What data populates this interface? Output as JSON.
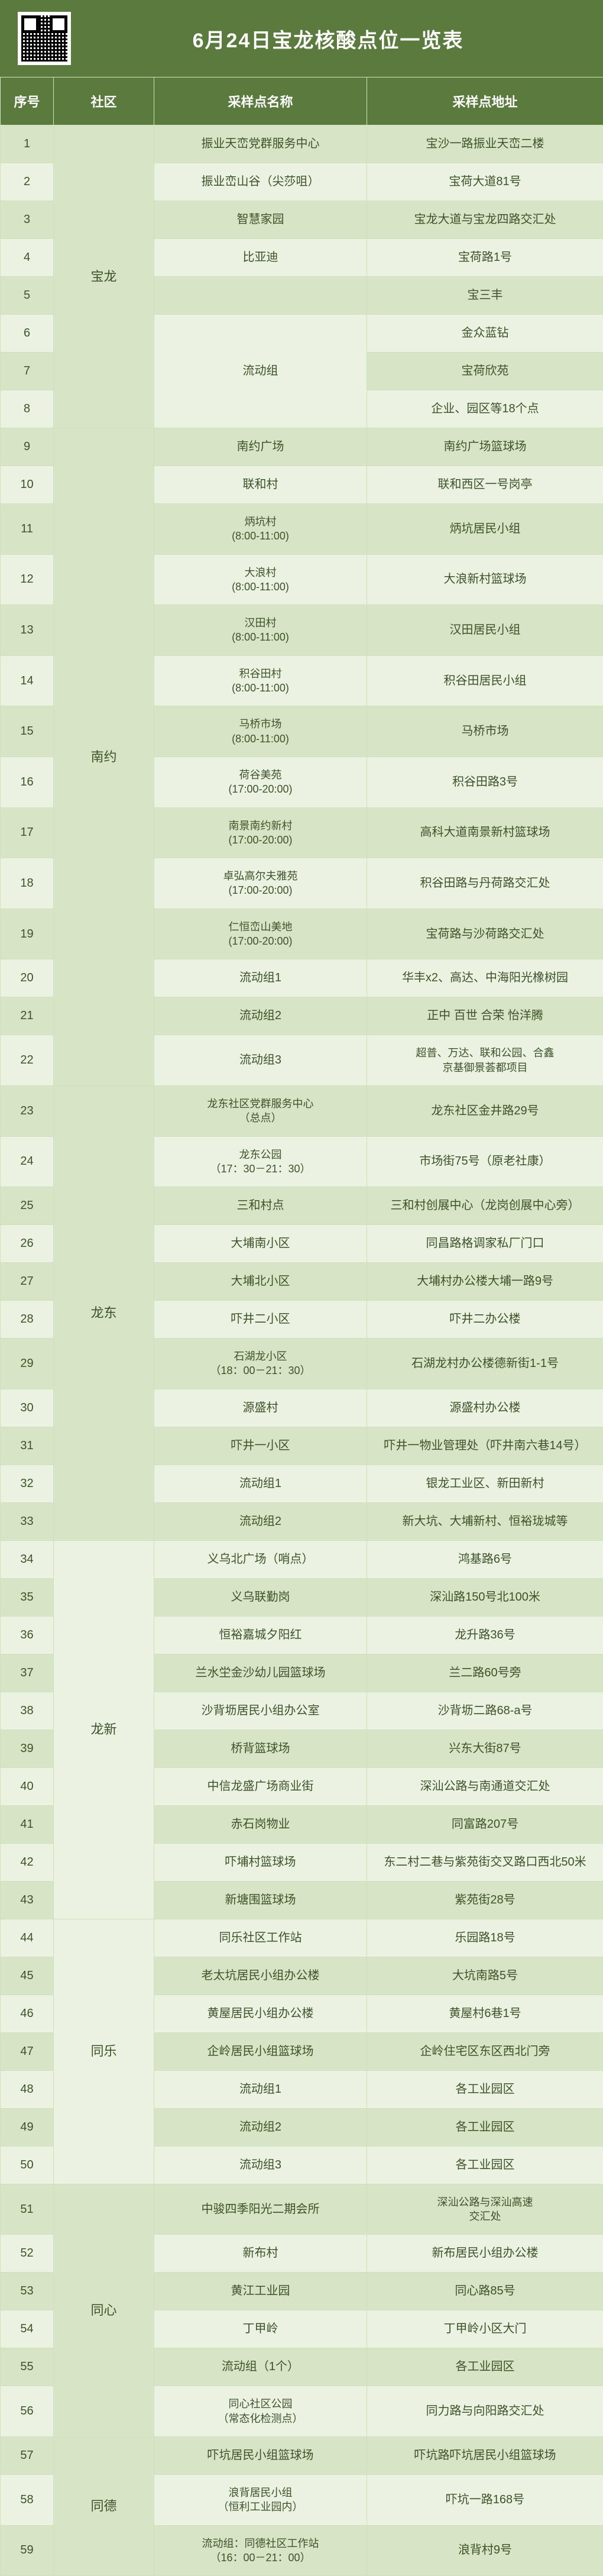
{
  "title": "6月24日宝龙核酸点位一览表",
  "columns": {
    "idx": "序号",
    "community": "社区",
    "name": "采样点名称",
    "address": "采样点地址"
  },
  "colors": {
    "header_bg": "#5a7a3e",
    "header_text": "#ffffff",
    "row_odd_bg": "#d7e5c6",
    "row_even_bg": "#ebf2e2",
    "cell_text": "#3d5228",
    "border": "#cfe0bd"
  },
  "communities": [
    {
      "name": "宝龙",
      "start": 1,
      "span": 8
    },
    {
      "name": "南约",
      "start": 9,
      "span": 14
    },
    {
      "name": "龙东",
      "start": 23,
      "span": 11
    },
    {
      "name": "龙新",
      "start": 34,
      "span": 10
    },
    {
      "name": "同乐",
      "start": 44,
      "span": 7
    },
    {
      "name": "同心",
      "start": 51,
      "span": 6
    },
    {
      "name": "同德",
      "start": 57,
      "span": 3
    }
  ],
  "merged_names": [
    {
      "start": 6,
      "span": 3,
      "name": "流动组"
    }
  ],
  "rows": [
    {
      "idx": 1,
      "name": "振业天峦党群服务中心",
      "address": "宝沙一路振业天峦二楼"
    },
    {
      "idx": 2,
      "name": "振业峦山谷（尖莎咀）",
      "address": "宝荷大道81号"
    },
    {
      "idx": 3,
      "name": "智慧家园",
      "address": "宝龙大道与宝龙四路交汇处"
    },
    {
      "idx": 4,
      "name": "比亚迪",
      "address": "宝荷路1号"
    },
    {
      "idx": 5,
      "name": "",
      "address": "宝三丰"
    },
    {
      "idx": 6,
      "name": "",
      "address": "金众蓝钻"
    },
    {
      "idx": 7,
      "name": "",
      "address": "宝荷欣苑"
    },
    {
      "idx": 8,
      "name": "",
      "address": "企业、园区等18个点"
    },
    {
      "idx": 9,
      "name": "南约广场",
      "address": "南约广场篮球场"
    },
    {
      "idx": 10,
      "name": "联和村",
      "address": "联和西区一号岗亭"
    },
    {
      "idx": 11,
      "name": "炳坑村\n(8:00-11:00)",
      "address": "炳坑居民小组"
    },
    {
      "idx": 12,
      "name": "大浪村\n(8:00-11:00)",
      "address": "大浪新村篮球场"
    },
    {
      "idx": 13,
      "name": "汉田村\n(8:00-11:00)",
      "address": "汉田居民小组"
    },
    {
      "idx": 14,
      "name": "积谷田村\n(8:00-11:00)",
      "address": "积谷田居民小组"
    },
    {
      "idx": 15,
      "name": "马桥市场\n(8:00-11:00)",
      "address": "马桥市场"
    },
    {
      "idx": 16,
      "name": "荷谷美苑\n(17:00-20:00)",
      "address": "积谷田路3号"
    },
    {
      "idx": 17,
      "name": "南景南约新村\n(17:00-20:00)",
      "address": "高科大道南景新村篮球场"
    },
    {
      "idx": 18,
      "name": "卓弘高尔夫雅苑\n(17:00-20:00)",
      "address": "积谷田路与丹荷路交汇处"
    },
    {
      "idx": 19,
      "name": "仁恒峦山美地\n(17:00-20:00)",
      "address": "宝荷路与沙荷路交汇处"
    },
    {
      "idx": 20,
      "name": "流动组1",
      "address": "华丰x2、高达、中海阳光橡树园"
    },
    {
      "idx": 21,
      "name": "流动组2",
      "address": "正中 百世 合荣 怡洋腾"
    },
    {
      "idx": 22,
      "name": "流动组3",
      "address": "超普、万达、联和公园、合鑫\n京基御景荟都项目"
    },
    {
      "idx": 23,
      "name": "龙东社区党群服务中心\n（总点）",
      "address": "龙东社区金井路29号"
    },
    {
      "idx": 24,
      "name": "龙东公园\n（17：30－21：30）",
      "address": "市场街75号（原老社康）"
    },
    {
      "idx": 25,
      "name": "三和村点",
      "address": "三和村创展中心（龙岗创展中心旁）"
    },
    {
      "idx": 26,
      "name": "大埔南小区",
      "address": "同昌路格调家私厂门口"
    },
    {
      "idx": 27,
      "name": "大埔北小区",
      "address": "大埔村办公楼大埔一路9号"
    },
    {
      "idx": 28,
      "name": "吓井二小区",
      "address": "吓井二办公楼"
    },
    {
      "idx": 29,
      "name": "石湖龙小区\n（18：00－21：30）",
      "address": "石湖龙村办公楼德新街1-1号"
    },
    {
      "idx": 30,
      "name": "源盛村",
      "address": "源盛村办公楼"
    },
    {
      "idx": 31,
      "name": "吓井一小区",
      "address": "吓井一物业管理处（吓井南六巷14号）"
    },
    {
      "idx": 32,
      "name": "流动组1",
      "address": "银龙工业区、新田新村"
    },
    {
      "idx": 33,
      "name": "流动组2",
      "address": "新大坑、大埔新村、恒裕珑城等"
    },
    {
      "idx": 34,
      "name": "义乌北广场（哨点）",
      "address": "鸿基路6号"
    },
    {
      "idx": 35,
      "name": "义乌联勤岗",
      "address": "深汕路150号北100米"
    },
    {
      "idx": 36,
      "name": "恒裕嘉城夕阳红",
      "address": "龙升路36号"
    },
    {
      "idx": 37,
      "name": "兰水坣金沙幼儿园篮球场",
      "address": "兰二路60号旁"
    },
    {
      "idx": 38,
      "name": "沙背坜居民小组办公室",
      "address": "沙背坜二路68-a号"
    },
    {
      "idx": 39,
      "name": "桥背篮球场",
      "address": "兴东大街87号"
    },
    {
      "idx": 40,
      "name": "中信龙盛广场商业街",
      "address": "深汕公路与南通道交汇处"
    },
    {
      "idx": 41,
      "name": "赤石岗物业",
      "address": "同富路207号"
    },
    {
      "idx": 42,
      "name": "吓埔村篮球场",
      "address": "东二村二巷与紫苑街交叉路口西北50米"
    },
    {
      "idx": 43,
      "name": "新塘围篮球场",
      "address": "紫苑街28号"
    },
    {
      "idx": 44,
      "name": "同乐社区工作站",
      "address": "乐园路18号"
    },
    {
      "idx": 45,
      "name": "老太坑居民小组办公楼",
      "address": "大坑南路5号"
    },
    {
      "idx": 46,
      "name": "黄屋居民小组办公楼",
      "address": "黄屋村6巷1号"
    },
    {
      "idx": 47,
      "name": "企岭居民小组篮球场",
      "address": "企岭住宅区东区西北门旁"
    },
    {
      "idx": 48,
      "name": "流动组1",
      "address": "各工业园区"
    },
    {
      "idx": 49,
      "name": "流动组2",
      "address": "各工业园区"
    },
    {
      "idx": 50,
      "name": "流动组3",
      "address": "各工业园区"
    },
    {
      "idx": 51,
      "name": "中骏四季阳光二期会所",
      "address": "深汕公路与深汕高速\n交汇处"
    },
    {
      "idx": 52,
      "name": "新布村",
      "address": "新布居民小组办公楼"
    },
    {
      "idx": 53,
      "name": "黄江工业园",
      "address": "同心路85号"
    },
    {
      "idx": 54,
      "name": "丁甲岭",
      "address": "丁甲岭小区大门"
    },
    {
      "idx": 55,
      "name": "流动组（1个）",
      "address": "各工业园区"
    },
    {
      "idx": 56,
      "name": "同心社区公园\n（常态化检测点）",
      "address": "同力路与向阳路交汇处"
    },
    {
      "idx": 57,
      "name": "吓坑居民小组篮球场",
      "address": "吓坑路吓坑居民小组篮球场"
    },
    {
      "idx": 58,
      "name": "浪背居民小组\n（恒利工业园内）",
      "address": "吓坑一路168号"
    },
    {
      "idx": 59,
      "name": "流动组：同德社区工作站\n（16：00－21：00）",
      "address": "浪背村9号"
    }
  ]
}
